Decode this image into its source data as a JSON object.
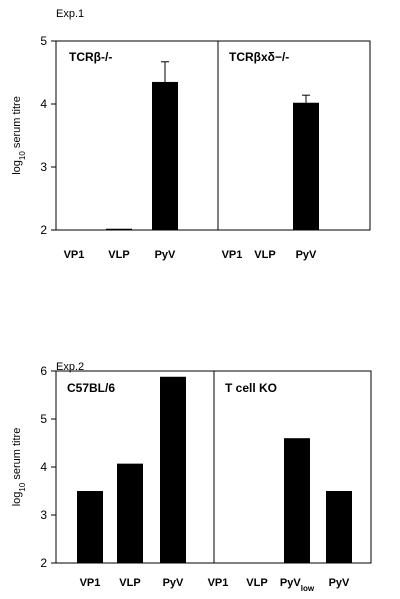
{
  "chart_data": [
    {
      "type": "bar",
      "title": "Exp.1",
      "ylabel": "log10 serum titre",
      "ylim": [
        2,
        5
      ],
      "yticks": [
        "2",
        "3",
        "4",
        "5"
      ],
      "panels": [
        {
          "title": "TCRβ-/-",
          "categories": [
            "VP1",
            "VLP",
            "PyV"
          ],
          "values": [
            2.0,
            2.02,
            4.35
          ],
          "errors": [
            0,
            0,
            0.32
          ]
        },
        {
          "title": "TCRβxδ−/-",
          "categories": [
            "VP1",
            "VLP",
            "PyV"
          ],
          "values": [
            2.0,
            2.0,
            4.02
          ],
          "errors": [
            0,
            0,
            0.12
          ]
        }
      ]
    },
    {
      "type": "bar",
      "title": "Exp.2",
      "ylabel": "log10 serum titre",
      "ylim": [
        2,
        6
      ],
      "yticks": [
        "2",
        "3",
        "4",
        "5",
        "6"
      ],
      "panels": [
        {
          "title": "C57BL/6",
          "categories": [
            "VP1",
            "VLP",
            "PyV"
          ],
          "values": [
            3.5,
            4.07,
            5.88
          ],
          "errors": [
            0,
            0,
            0
          ]
        },
        {
          "title": "T cell KO",
          "categories": [
            "VP1",
            "VLP",
            "PyVlow",
            "PyV"
          ],
          "values": [
            2.0,
            2.0,
            4.6,
            3.5
          ],
          "errors": [
            0,
            0,
            0,
            0
          ]
        }
      ]
    }
  ]
}
